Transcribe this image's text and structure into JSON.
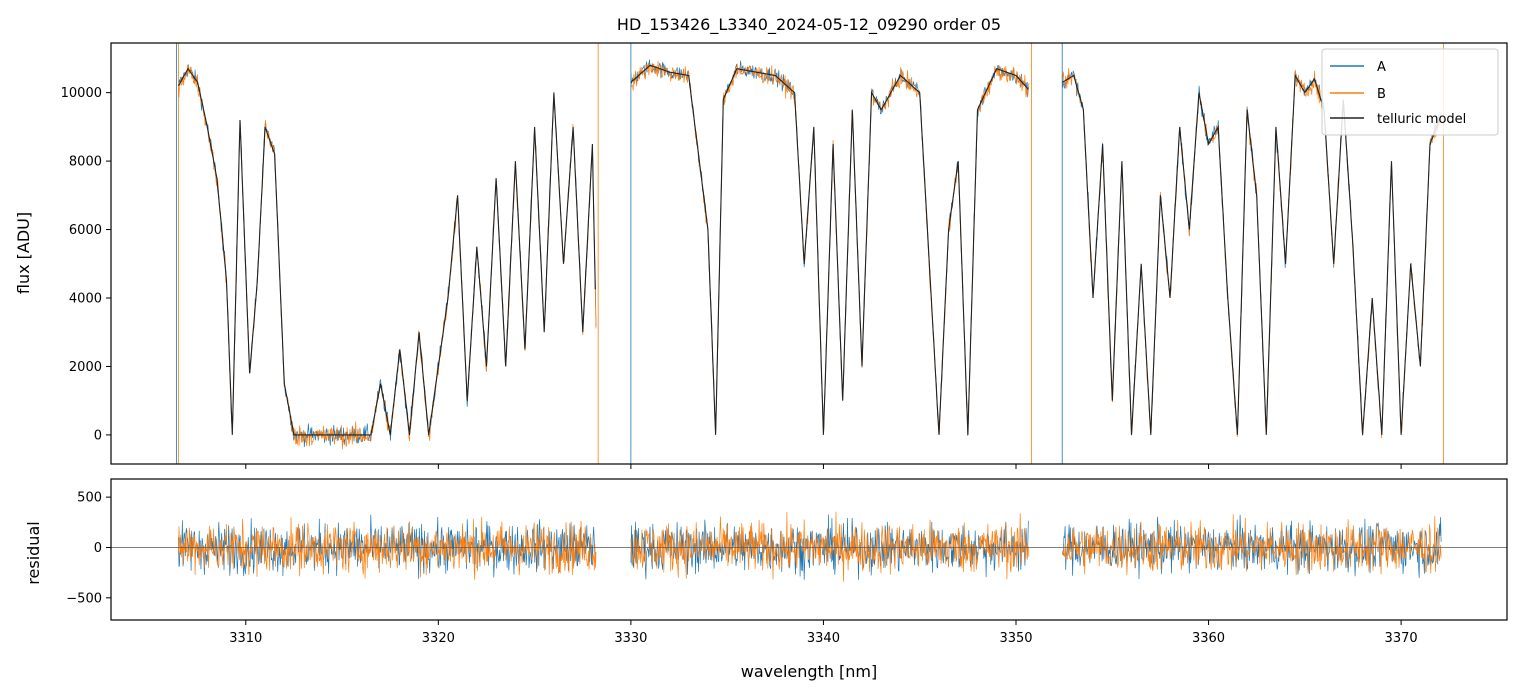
{
  "chart_data": [
    {
      "type": "line",
      "panel": "top",
      "title": "HD_153426_L3340_2024-05-12_09290  order 05",
      "ylabel": "flux [ADU]",
      "xlim": [
        3303.0,
        3375.5
      ],
      "ylim": [
        -850,
        11450
      ],
      "yticks": [
        0,
        2000,
        4000,
        6000,
        8000,
        10000
      ],
      "ytick_labels": [
        "0",
        "2000",
        "4000",
        "6000",
        "8000",
        "10000"
      ],
      "legend": {
        "placement": "top-right",
        "entries": [
          "A",
          "B",
          "telluric model"
        ]
      },
      "series": [
        {
          "name": "A",
          "color": "#1f77b4",
          "x_range": [
            3306.5,
            3372.2
          ]
        },
        {
          "name": "B",
          "color": "#ff7f0e",
          "x_range": [
            3306.5,
            3372.2
          ]
        },
        {
          "name": "telluric model",
          "color": "#222222",
          "x": [
            3306.5,
            3307.0,
            3307.5,
            3308.0,
            3308.5,
            3309.0,
            3309.3,
            3309.7,
            3310.2,
            3310.6,
            3311.0,
            3311.5,
            3312.0,
            3312.5,
            3315.0,
            3316.5,
            3317.0,
            3317.5,
            3318.0,
            3318.5,
            3319.0,
            3319.5,
            3320.0,
            3320.5,
            3321.0,
            3321.5,
            3322.0,
            3322.5,
            3323.0,
            3323.5,
            3324.0,
            3324.5,
            3325.0,
            3325.5,
            3326.0,
            3326.5,
            3327.0,
            3327.5,
            3328.0,
            3328.3,
            3330.0,
            3331.0,
            3332.0,
            3333.0,
            3334.0,
            3334.4,
            3334.8,
            3335.5,
            3336.5,
            3337.5,
            3338.5,
            3339.0,
            3339.5,
            3340.0,
            3340.5,
            3341.0,
            3341.5,
            3342.0,
            3342.5,
            3343.0,
            3344.0,
            3345.0,
            3345.5,
            3346.0,
            3346.5,
            3347.0,
            3347.5,
            3348.0,
            3349.0,
            3350.0,
            3350.8,
            3352.4,
            3353.0,
            3353.5,
            3354.0,
            3354.5,
            3355.0,
            3355.5,
            3356.0,
            3356.5,
            3357.0,
            3357.5,
            3358.0,
            3358.5,
            3359.0,
            3359.5,
            3360.0,
            3360.5,
            3361.0,
            3361.5,
            3362.0,
            3362.5,
            3363.0,
            3363.5,
            3364.0,
            3364.5,
            3365.0,
            3365.5,
            3366.0,
            3366.5,
            3367.0,
            3367.5,
            3368.0,
            3368.5,
            3369.0,
            3369.5,
            3370.0,
            3370.5,
            3371.0,
            3371.5,
            3372.2
          ],
          "y": [
            10200,
            10700,
            10300,
            9000,
            7500,
            4500,
            0,
            9200,
            1800,
            4500,
            9000,
            8200,
            1500,
            0,
            0,
            0,
            1500,
            0,
            2500,
            0,
            3000,
            0,
            2000,
            4000,
            7000,
            1000,
            5500,
            2000,
            7500,
            2000,
            8000,
            2500,
            9000,
            3000,
            10000,
            5000,
            9000,
            3000,
            8500,
            0,
            10300,
            10800,
            10600,
            10500,
            6000,
            0,
            9800,
            10700,
            10600,
            10500,
            10000,
            5000,
            9000,
            0,
            8500,
            1000,
            9500,
            2000,
            10000,
            9500,
            10500,
            10000,
            5000,
            0,
            6000,
            8000,
            0,
            9500,
            10700,
            10500,
            10000,
            10300,
            10500,
            9500,
            4000,
            8500,
            1000,
            8000,
            0,
            5000,
            0,
            7000,
            4000,
            9000,
            6000,
            10000,
            8500,
            9000,
            4000,
            0,
            9500,
            7000,
            0,
            9000,
            5000,
            10500,
            10000,
            10400,
            9500,
            5000,
            9800,
            5500,
            0,
            4000,
            0,
            8000,
            0,
            5000,
            2000,
            8500,
            9500
          ]
        }
      ]
    },
    {
      "type": "line",
      "panel": "bottom",
      "xlabel": "wavelength [nm]",
      "ylabel": "residual",
      "xlim": [
        3303.0,
        3375.5
      ],
      "ylim": [
        -720,
        680
      ],
      "xticks": [
        3310,
        3320,
        3330,
        3340,
        3350,
        3360,
        3370
      ],
      "xtick_labels": [
        "3310",
        "3320",
        "3330",
        "3340",
        "3350",
        "3360",
        "3370"
      ],
      "yticks": [
        -500,
        0,
        500
      ],
      "ytick_labels": [
        "−500",
        "0",
        "500"
      ],
      "segments": [
        [
          3306.5,
          3328.2
        ],
        [
          3330.0,
          3350.7
        ],
        [
          3352.4,
          3372.1
        ]
      ],
      "series": [
        {
          "name": "A",
          "color": "#1f77b4"
        },
        {
          "name": "B",
          "color": "#ff7f0e"
        }
      ],
      "zero_line": true
    }
  ]
}
